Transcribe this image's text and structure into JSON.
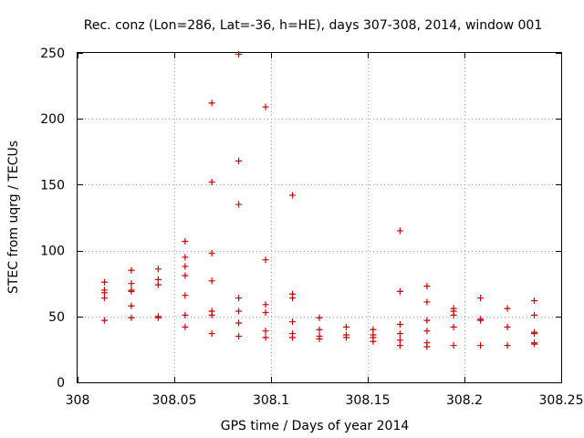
{
  "chart_data": {
    "type": "scatter",
    "title": "Rec. conz (Lon=286, Lat=-36, h=HE), days 307-308, 2014, window 001",
    "xlabel": "GPS time / Days of year 2014",
    "ylabel": "STEC from uqrg / TECUs",
    "xlim": [
      308,
      308.25
    ],
    "ylim": [
      0,
      250
    ],
    "grid": true,
    "marker": "+",
    "marker_color": "#cc0000",
    "xticks": [
      {
        "value": 308,
        "label": "308"
      },
      {
        "value": 308.05,
        "label": "308.05"
      },
      {
        "value": 308.1,
        "label": "308.1"
      },
      {
        "value": 308.15,
        "label": "308.15"
      },
      {
        "value": 308.2,
        "label": "308.2"
      },
      {
        "value": 308.25,
        "label": "308.25"
      }
    ],
    "yticks": [
      {
        "value": 0,
        "label": "0"
      },
      {
        "value": 50,
        "label": "50"
      },
      {
        "value": 100,
        "label": "100"
      },
      {
        "value": 150,
        "label": "150"
      },
      {
        "value": 200,
        "label": "200"
      },
      {
        "value": 250,
        "label": "250"
      }
    ],
    "series": [
      {
        "name": "STEC",
        "points": [
          [
            308.0139,
            76
          ],
          [
            308.0139,
            70
          ],
          [
            308.0139,
            68
          ],
          [
            308.0139,
            64
          ],
          [
            308.0139,
            47
          ],
          [
            308.0278,
            85
          ],
          [
            308.0278,
            75
          ],
          [
            308.0278,
            70
          ],
          [
            308.0278,
            69
          ],
          [
            308.0278,
            58
          ],
          [
            308.0278,
            49
          ],
          [
            308.0417,
            86
          ],
          [
            308.0417,
            78
          ],
          [
            308.0417,
            74
          ],
          [
            308.0417,
            50
          ],
          [
            308.0417,
            49
          ],
          [
            308.0556,
            107
          ],
          [
            308.0556,
            95
          ],
          [
            308.0556,
            88
          ],
          [
            308.0556,
            81
          ],
          [
            308.0556,
            66
          ],
          [
            308.0556,
            51
          ],
          [
            308.0556,
            42
          ],
          [
            308.0694,
            212
          ],
          [
            308.0694,
            152
          ],
          [
            308.0694,
            98
          ],
          [
            308.0694,
            77
          ],
          [
            308.0694,
            54
          ],
          [
            308.0694,
            51
          ],
          [
            308.0694,
            37
          ],
          [
            308.0833,
            249
          ],
          [
            308.0833,
            168
          ],
          [
            308.0833,
            135
          ],
          [
            308.0833,
            64
          ],
          [
            308.0833,
            54
          ],
          [
            308.0833,
            45
          ],
          [
            308.0833,
            35
          ],
          [
            308.0972,
            209
          ],
          [
            308.0972,
            93
          ],
          [
            308.0972,
            59
          ],
          [
            308.0972,
            53
          ],
          [
            308.0972,
            39
          ],
          [
            308.0972,
            34
          ],
          [
            308.1111,
            142
          ],
          [
            308.1111,
            67
          ],
          [
            308.1111,
            64
          ],
          [
            308.1111,
            46
          ],
          [
            308.1111,
            37
          ],
          [
            308.1111,
            34
          ],
          [
            308.125,
            49
          ],
          [
            308.125,
            40
          ],
          [
            308.125,
            35
          ],
          [
            308.125,
            33
          ],
          [
            308.1389,
            42
          ],
          [
            308.1389,
            36
          ],
          [
            308.1389,
            34
          ],
          [
            308.1528,
            40
          ],
          [
            308.1528,
            36
          ],
          [
            308.1528,
            34
          ],
          [
            308.1528,
            31
          ],
          [
            308.1667,
            115
          ],
          [
            308.1667,
            69
          ],
          [
            308.1667,
            44
          ],
          [
            308.1667,
            37
          ],
          [
            308.1667,
            32
          ],
          [
            308.1667,
            28
          ],
          [
            308.1806,
            73
          ],
          [
            308.1806,
            61
          ],
          [
            308.1806,
            47
          ],
          [
            308.1806,
            39
          ],
          [
            308.1806,
            30
          ],
          [
            308.1806,
            27
          ],
          [
            308.1944,
            56
          ],
          [
            308.1944,
            54
          ],
          [
            308.1944,
            51
          ],
          [
            308.1944,
            42
          ],
          [
            308.1944,
            28
          ],
          [
            308.2083,
            64
          ],
          [
            308.2083,
            48
          ],
          [
            308.2083,
            47
          ],
          [
            308.2083,
            28
          ],
          [
            308.2222,
            56
          ],
          [
            308.2222,
            42
          ],
          [
            308.2222,
            28
          ],
          [
            308.2361,
            62
          ],
          [
            308.2361,
            51
          ],
          [
            308.2361,
            38
          ],
          [
            308.2361,
            37
          ],
          [
            308.2361,
            30
          ],
          [
            308.2361,
            29
          ]
        ]
      }
    ]
  }
}
